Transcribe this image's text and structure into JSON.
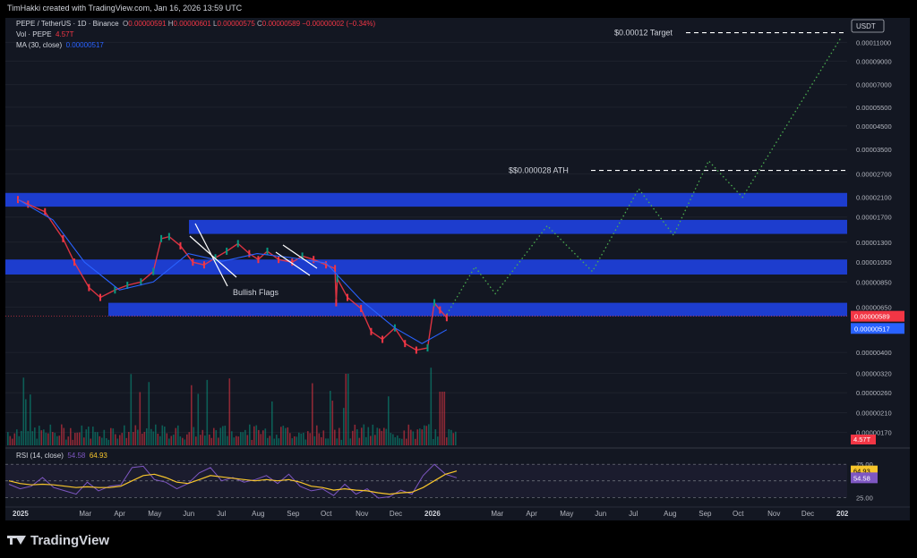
{
  "header": {
    "attribution": "TimHakki created with TradingView.com, Jan 16, 2026 13:59 UTC"
  },
  "legend": {
    "symbol": "PEPE / TetherUS · 1D · Binance",
    "o_label": "O",
    "o_value": "0.00000591",
    "h_label": "H",
    "h_value": "0.00000601",
    "l_label": "L",
    "l_value": "0.00000575",
    "c_label": "C",
    "c_value": "0.00000589",
    "change": "−0.00000002 (−0.34%)",
    "vol_label": "Vol · PEPE",
    "vol_value": "4.57T",
    "ma_label": "MA (30, close)",
    "ma_value": "0.00000517",
    "rsi_label": "RSI (14, close)",
    "rsi_value": "54.58",
    "rsi_ma_value": "64.93"
  },
  "footer": {
    "brand": "TradingView"
  },
  "colors": {
    "up": "#089981",
    "down": "#f23645",
    "ma": "#2962ff",
    "zone": "#1e3fd8",
    "projection": "#4caf50",
    "rsi": "#7e57c2",
    "rsi_ma": "#f7c52b",
    "bg": "#131722"
  },
  "chart_data": [
    {
      "type": "line",
      "title": "PEPE / TetherUS · 1D · Binance",
      "currency": "USDT",
      "scale": "log",
      "y_ticks": [
        "0.00011000",
        "0.00009000",
        "0.00007000",
        "0.00005500",
        "0.00004500",
        "0.00003500",
        "0.00002700",
        "0.00002100",
        "0.00001700",
        "0.00001300",
        "0.00001050",
        "0.00000850",
        "0.00000650",
        "0.00000400",
        "0.00000320",
        "0.00000260",
        "0.00000210",
        "0.00000170"
      ],
      "x_ticks": [
        "2025",
        "Mar",
        "Apr",
        "May",
        "Jun",
        "Jul",
        "Aug",
        "Sep",
        "Oct",
        "Nov",
        "Dec",
        "2026",
        "Mar",
        "Apr",
        "May",
        "Jun",
        "Jul",
        "Aug",
        "Sep",
        "Oct",
        "Nov",
        "Dec",
        "202"
      ],
      "price_series": {
        "name": "PEPE / TetherUS",
        "x": [
          "2025-01-01",
          "2025-01-10",
          "2025-01-25",
          "2025-02-10",
          "2025-02-20",
          "2025-03-05",
          "2025-03-15",
          "2025-03-28",
          "2025-04-08",
          "2025-04-20",
          "2025-05-01",
          "2025-05-08",
          "2025-05-15",
          "2025-05-25",
          "2025-06-05",
          "2025-06-15",
          "2025-06-25",
          "2025-07-05",
          "2025-07-15",
          "2025-07-25",
          "2025-08-02",
          "2025-08-10",
          "2025-08-20",
          "2025-09-01",
          "2025-09-10",
          "2025-09-20",
          "2025-10-01",
          "2025-10-09",
          "2025-10-10",
          "2025-10-11",
          "2025-10-20",
          "2025-11-01",
          "2025-11-10",
          "2025-11-20",
          "2025-12-01",
          "2025-12-10",
          "2025-12-20",
          "2025-12-30",
          "2026-01-05",
          "2026-01-10",
          "2026-01-16"
        ],
        "y": [
          2.05e-05,
          1.95e-05,
          1.8e-05,
          1.35e-05,
          1.05e-05,
          8e-06,
          7.2e-06,
          7.8e-06,
          8.2e-06,
          8.5e-06,
          9.5e-06,
          1.35e-05,
          1.38e-05,
          1.25e-05,
          1.05e-05,
          1.02e-05,
          1.1e-05,
          1.18e-05,
          1.28e-05,
          1.15e-05,
          1.08e-05,
          1.18e-05,
          1.08e-05,
          1.05e-05,
          1.12e-05,
          1.08e-05,
          1.02e-05,
          9.8e-06,
          6.8e-06,
          8.8e-06,
          7.2e-06,
          6.4e-06,
          5e-06,
          4.6e-06,
          5.2e-06,
          4.4e-06,
          4.1e-06,
          4.2e-06,
          6.8e-06,
          6.3e-06,
          5.8e-06
        ]
      },
      "ma_series": {
        "name": "MA (30, close)",
        "x": [
          "2025-01-01",
          "2025-02-01",
          "2025-03-01",
          "2025-04-01",
          "2025-05-01",
          "2025-06-01",
          "2025-07-01",
          "2025-08-01",
          "2025-09-01",
          "2025-10-01",
          "2025-11-01",
          "2025-12-01",
          "2025-12-25",
          "2026-01-16"
        ],
        "y": [
          2.05e-05,
          1.65e-05,
          1.05e-05,
          7.8e-06,
          8.5e-06,
          1.15e-05,
          1.06e-05,
          1.15e-05,
          1.1e-05,
          1.04e-05,
          7e-06,
          5.2e-06,
          4.4e-06,
          5.1e-06
        ]
      },
      "projection": {
        "x": [
          "2026-01-16",
          "2026-02-10",
          "2026-02-28",
          "2026-04-15",
          "2026-05-25",
          "2026-07-05",
          "2026-08-05",
          "2026-09-05",
          "2026-10-05",
          "2026-12-31"
        ],
        "y": [
          6e-06,
          1e-05,
          7.5e-06,
          1.55e-05,
          9.5e-06,
          2.3e-05,
          1.4e-05,
          3.1e-05,
          2.1e-05,
          0.000115
        ]
      },
      "zones": [
        {
          "low": 1.9e-05,
          "high": 2.2e-05
        },
        {
          "low": 1.42e-05,
          "high": 1.65e-05
        },
        {
          "low": 9.2e-06,
          "high": 1.08e-05
        },
        {
          "low": 5.9e-06,
          "high": 6.8e-06
        }
      ],
      "levels": [
        {
          "label": "$0.00012 Target",
          "value": 0.000122
        },
        {
          "label": "$$0.000028 ATH",
          "value": 2.8e-05
        }
      ],
      "annotations": [
        "Bullish Flags"
      ],
      "price_labels": [
        {
          "text": "0.00000589",
          "color": "#f23645",
          "value": 5.89e-06
        },
        {
          "text": "0.00000517",
          "color": "#2962ff",
          "value": 5.17e-06
        }
      ],
      "volume_label": "4.57T",
      "volume_value": 4.57
    },
    {
      "type": "line",
      "name": "RSI (14, close)",
      "y_ticks": [
        "75.00",
        "25.00"
      ],
      "ylim": [
        20,
        82
      ],
      "series": [
        {
          "name": "RSI",
          "values": [
            45,
            38,
            42,
            55,
            40,
            35,
            30,
            48,
            35,
            42,
            44,
            70,
            72,
            52,
            48,
            38,
            46,
            62,
            70,
            50,
            55,
            48,
            52,
            58,
            46,
            60,
            42,
            35,
            38,
            28,
            45,
            30,
            38,
            24,
            26,
            36,
            30,
            58,
            75,
            60,
            54.58
          ]
        },
        {
          "name": "RSI MA",
          "values": [
            50,
            46,
            44,
            45,
            44,
            42,
            40,
            41,
            40,
            40,
            42,
            50,
            58,
            60,
            55,
            48,
            46,
            52,
            58,
            56,
            54,
            52,
            50,
            52,
            50,
            52,
            48,
            42,
            40,
            36,
            38,
            36,
            35,
            32,
            30,
            32,
            33,
            40,
            50,
            60,
            64.93
          ]
        }
      ],
      "value_labels": [
        "64.93",
        "54.58"
      ]
    }
  ]
}
